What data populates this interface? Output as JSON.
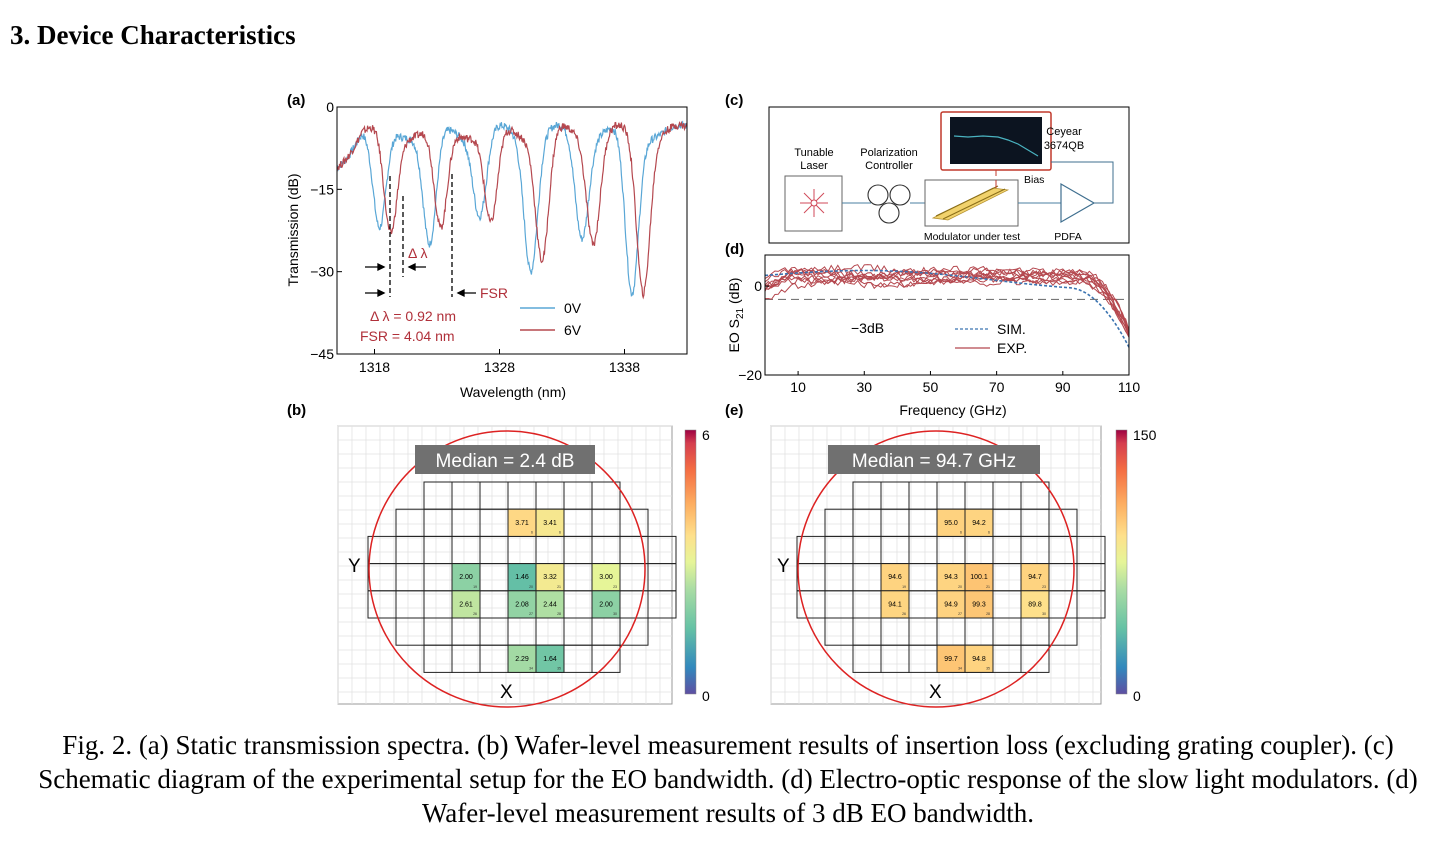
{
  "section_heading": "3. Device Characteristics",
  "caption": "Fig. 2. (a) Static transmission spectra. (b) Wafer-level measurement results of insertion loss (excluding grating coupler). (c) Schematic diagram of the experimental setup for the EO bandwidth. (d) Electro-optic response of the slow light modulators. (d) Wafer-level measurement results of 3 dB EO bandwidth.",
  "labels": {
    "a": "(a)",
    "b": "(b)",
    "c": "(c)",
    "d": "(d)",
    "e": "(e)"
  },
  "chart_data": [
    {
      "id": "a",
      "type": "line",
      "xlabel": "Wavelength (nm)",
      "ylabel": "Transmission (dB)",
      "xlim": [
        1315,
        1343
      ],
      "ylim": [
        -45,
        0
      ],
      "xticks": [
        1318,
        1328,
        1338
      ],
      "yticks": [
        0,
        -15,
        -30,
        -45
      ],
      "series": [
        {
          "name": "0V",
          "color": "#5aa7d6",
          "dips": [
            1318.4,
            1322.4,
            1326.4,
            1330.5,
            1334.6,
            1338.6
          ]
        },
        {
          "name": "6V",
          "color": "#b5484f",
          "dips": [
            1319.3,
            1323.3,
            1327.3,
            1331.4,
            1335.5,
            1339.5
          ]
        }
      ],
      "annotations": {
        "delta_lambda": "Δ λ",
        "fsr": "FSR",
        "delta_text": "Δ λ = 0.92 nm",
        "fsr_text": "FSR = 4.04 nm",
        "delta_value_nm": 0.92,
        "fsr_value_nm": 4.04
      }
    },
    {
      "id": "d",
      "type": "line",
      "xlabel": "Frequency (GHz)",
      "ylabel_main": "EO S",
      "ylabel_sub": "21",
      "ylabel_unit": " (dB)",
      "xlim": [
        0,
        110
      ],
      "ylim": [
        -20,
        7
      ],
      "xticks": [
        10,
        30,
        50,
        70,
        90,
        110
      ],
      "yticks": [
        0,
        -20
      ],
      "reference_level": -3,
      "reference_label": "−3dB",
      "legend": [
        "SIM.",
        "EXP."
      ],
      "series_colors": {
        "sim": "#3b73b0",
        "exp": "#b5484f"
      },
      "experimental_curve_count": 10
    },
    {
      "id": "b",
      "type": "heatmap",
      "median_label": "Median = 2.4 dB",
      "axis_x": "X",
      "axis_y": "Y",
      "colorbar_max": "6",
      "colorbar_min": "0",
      "vmax": 6,
      "cells": [
        {
          "row": 1,
          "col": 5,
          "value": "3.71",
          "n": "6"
        },
        {
          "row": 1,
          "col": 6,
          "value": "3.41",
          "n": "6"
        },
        {
          "row": 3,
          "col": 3,
          "value": "2.00",
          "n": "19"
        },
        {
          "row": 3,
          "col": 5,
          "value": "1.46",
          "n": "20"
        },
        {
          "row": 3,
          "col": 6,
          "value": "3.32",
          "n": "21"
        },
        {
          "row": 3,
          "col": 8,
          "value": "3.00",
          "n": "23"
        },
        {
          "row": 4,
          "col": 3,
          "value": "2.61",
          "n": "26"
        },
        {
          "row": 4,
          "col": 5,
          "value": "2.08",
          "n": "27"
        },
        {
          "row": 4,
          "col": 6,
          "value": "2.44",
          "n": "28"
        },
        {
          "row": 4,
          "col": 8,
          "value": "2.00",
          "n": "30"
        },
        {
          "row": 6,
          "col": 5,
          "value": "2.29",
          "n": "34"
        },
        {
          "row": 6,
          "col": 6,
          "value": "1.64",
          "n": "35"
        }
      ]
    },
    {
      "id": "e",
      "type": "heatmap",
      "median_label": "Median = 94.7 GHz",
      "axis_x": "X",
      "axis_y": "Y",
      "colorbar_max": "150",
      "colorbar_min": "0",
      "vmax": 150,
      "cells": [
        {
          "row": 1,
          "col": 5,
          "value": "95.0",
          "n": "6"
        },
        {
          "row": 1,
          "col": 6,
          "value": "94.2",
          "n": "6"
        },
        {
          "row": 3,
          "col": 3,
          "value": "94.6",
          "n": "19"
        },
        {
          "row": 3,
          "col": 5,
          "value": "94.3",
          "n": "20"
        },
        {
          "row": 3,
          "col": 6,
          "value": "100.1",
          "n": "21"
        },
        {
          "row": 3,
          "col": 8,
          "value": "94.7",
          "n": "23"
        },
        {
          "row": 4,
          "col": 3,
          "value": "94.1",
          "n": "26"
        },
        {
          "row": 4,
          "col": 5,
          "value": "94.9",
          "n": "27"
        },
        {
          "row": 4,
          "col": 6,
          "value": "99.3",
          "n": "28"
        },
        {
          "row": 4,
          "col": 8,
          "value": "89.8",
          "n": "30"
        },
        {
          "row": 6,
          "col": 5,
          "value": "99.7",
          "n": "34"
        },
        {
          "row": 6,
          "col": 6,
          "value": "94.8",
          "n": "35"
        }
      ]
    }
  ],
  "setup": {
    "laser_label": [
      "Tunable",
      "Laser"
    ],
    "controller_label": [
      "Polarization",
      "Controller"
    ],
    "instrument_label": [
      "Ceyear",
      "3674QB"
    ],
    "bias_label": "Bias",
    "modulator_label": "Modulator under test",
    "amplifier_label": "PDFA"
  }
}
